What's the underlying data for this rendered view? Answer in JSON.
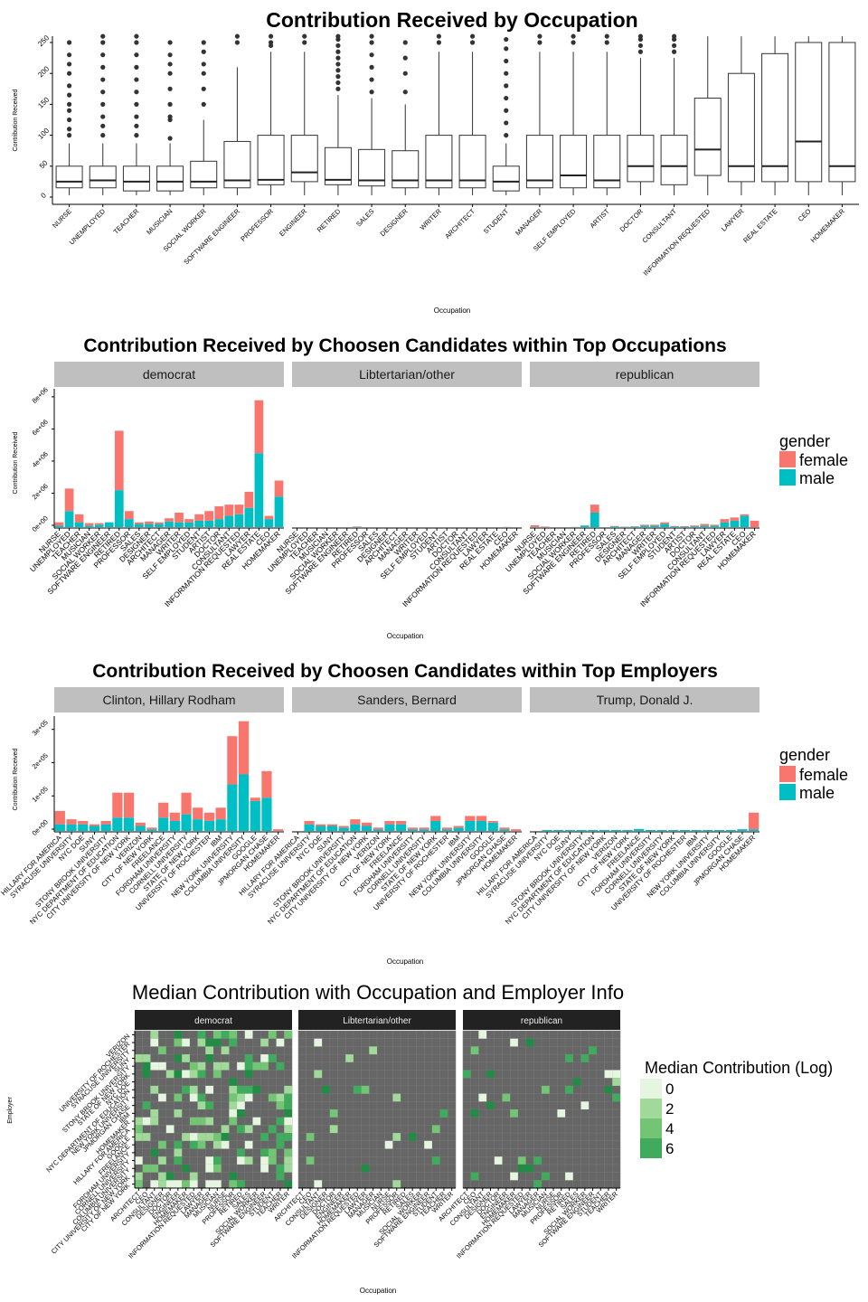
{
  "chart_data": [
    {
      "type": "box",
      "title": "Contribution Received by Occupation",
      "xlabel": "Occupation",
      "ylabel": "Contribution Received",
      "ylim": [
        0,
        260
      ],
      "yticks": [
        0,
        50,
        100,
        150,
        200,
        250
      ],
      "categories": [
        "NURSE",
        "UNEMPLOYED",
        "TEACHER",
        "MUSICIAN",
        "SOCIAL WORKER",
        "SOFTWARE ENGINEER",
        "PROFESSOR",
        "ENGINEER",
        "RETIRED",
        "SALES",
        "DESIGNER",
        "WRITER",
        "ARCHITECT",
        "STUDENT",
        "MANAGER",
        "SELF EMPLOYED",
        "ARTIST",
        "DOCTOR",
        "CONSULTANT",
        "INFORMATION REQUESTED",
        "LAWYER",
        "REAL ESTATE",
        "CEO",
        "HOMEMAKER"
      ],
      "boxes": [
        {
          "min": 3,
          "q1": 15,
          "median": 25,
          "q3": 50,
          "max": 87,
          "outliers": [
            100,
            110,
            125,
            140,
            150,
            165,
            180,
            200,
            215,
            230,
            250
          ]
        },
        {
          "min": 3,
          "q1": 15,
          "median": 27,
          "q3": 50,
          "max": 87,
          "outliers": [
            100,
            115,
            130,
            150,
            170,
            190,
            210,
            230,
            250,
            260
          ]
        },
        {
          "min": 3,
          "q1": 10,
          "median": 25,
          "q3": 50,
          "max": 87,
          "outliers": [
            100,
            115,
            130,
            150,
            170,
            190,
            210,
            230,
            250,
            260
          ]
        },
        {
          "min": 3,
          "q1": 10,
          "median": 25,
          "q3": 50,
          "max": 87,
          "outliers": [
            95,
            125,
            130,
            150,
            175,
            200,
            215,
            230,
            250
          ]
        },
        {
          "min": 3,
          "q1": 15,
          "median": 25,
          "q3": 58,
          "max": 125,
          "outliers": [
            150,
            175,
            200,
            215,
            235,
            250
          ]
        },
        {
          "min": 3,
          "q1": 15,
          "median": 27,
          "q3": 90,
          "max": 210,
          "outliers": [
            250,
            260
          ]
        },
        {
          "min": 3,
          "q1": 20,
          "median": 28,
          "q3": 100,
          "max": 235,
          "outliers": [
            245,
            250,
            260
          ]
        },
        {
          "min": 3,
          "q1": 25,
          "median": 40,
          "q3": 100,
          "max": 235,
          "outliers": [
            250,
            260
          ]
        },
        {
          "min": 3,
          "q1": 20,
          "median": 28,
          "q3": 80,
          "max": 165,
          "outliers": [
            175,
            185,
            195,
            205,
            215,
            225,
            235,
            245,
            255,
            260
          ]
        },
        {
          "min": 3,
          "q1": 18,
          "median": 27,
          "q3": 77,
          "max": 160,
          "outliers": [
            170,
            190,
            210,
            230,
            250,
            260
          ]
        },
        {
          "min": 3,
          "q1": 15,
          "median": 27,
          "q3": 75,
          "max": 150,
          "outliers": [
            170,
            200,
            225,
            250
          ]
        },
        {
          "min": 3,
          "q1": 15,
          "median": 27,
          "q3": 100,
          "max": 235,
          "outliers": [
            250,
            260
          ]
        },
        {
          "min": 3,
          "q1": 15,
          "median": 27,
          "q3": 100,
          "max": 235,
          "outliers": [
            250,
            260
          ]
        },
        {
          "min": 3,
          "q1": 10,
          "median": 25,
          "q3": 50,
          "max": 87,
          "outliers": [
            100,
            120,
            140,
            160,
            180,
            200,
            220,
            240,
            255
          ]
        },
        {
          "min": 3,
          "q1": 15,
          "median": 27,
          "q3": 100,
          "max": 235,
          "outliers": [
            250,
            260
          ]
        },
        {
          "min": 3,
          "q1": 15,
          "median": 35,
          "q3": 100,
          "max": 235,
          "outliers": [
            250,
            260
          ]
        },
        {
          "min": 3,
          "q1": 15,
          "median": 27,
          "q3": 100,
          "max": 235,
          "outliers": [
            250,
            260
          ]
        },
        {
          "min": 3,
          "q1": 25,
          "median": 50,
          "q3": 100,
          "max": 225,
          "outliers": [
            235,
            245,
            255,
            260
          ]
        },
        {
          "min": 3,
          "q1": 20,
          "median": 50,
          "q3": 100,
          "max": 225,
          "outliers": [
            235,
            245,
            255,
            260
          ]
        },
        {
          "min": 3,
          "q1": 35,
          "median": 77,
          "q3": 160,
          "max": 260,
          "outliers": []
        },
        {
          "min": 3,
          "q1": 25,
          "median": 50,
          "q3": 200,
          "max": 260,
          "outliers": []
        },
        {
          "min": 3,
          "q1": 25,
          "median": 50,
          "q3": 232,
          "max": 260,
          "outliers": []
        },
        {
          "min": 3,
          "q1": 25,
          "median": 90,
          "q3": 250,
          "max": 260,
          "outliers": []
        },
        {
          "min": 3,
          "q1": 25,
          "median": 50,
          "q3": 250,
          "max": 260,
          "outliers": []
        }
      ]
    },
    {
      "type": "bar",
      "stacked": true,
      "title": "Contribution Received by Choosen Candidates within Top Occupations",
      "xlabel": "Occupation",
      "ylabel": "Contribution Received",
      "ylim": [
        0,
        8500000
      ],
      "yticks": [
        0,
        2000000,
        4000000,
        6000000,
        8000000
      ],
      "ytick_labels": [
        "0e+00",
        "2e+06",
        "4e+06",
        "6e+06",
        "8e+06"
      ],
      "legend": {
        "title": "gender",
        "position": "right",
        "entries": [
          "female",
          "male"
        ]
      },
      "categories": [
        "NURSE",
        "UNEMPLOYED",
        "TEACHER",
        "MUSICIAN",
        "SOCIAL WORKER",
        "SOFTWARE ENGINEER",
        "RETIRED",
        "PROFESSOR",
        "SALES",
        "DESIGNER",
        "ARCHITECT",
        "MANAGER",
        "WRITER",
        "SELF EMPLOYED",
        "STUDENT",
        "ARTIST",
        "DOCTOR",
        "CONSULTANT",
        "INFORMATION REQUESTED",
        "LAWYER",
        "REAL ESTATE",
        "CEO",
        "HOMEMAKER"
      ],
      "facets": [
        {
          "name": "democrat",
          "series": [
            {
              "name": "male",
              "values": [
                100000,
                1000000,
                300000,
                100000,
                150000,
                300000,
                2300000,
                500000,
                200000,
                200000,
                200000,
                350000,
                300000,
                300000,
                400000,
                400000,
                500000,
                700000,
                800000,
                1200000,
                4600000,
                500000,
                1900000
              ]
            },
            {
              "name": "female",
              "values": [
                200000,
                1400000,
                500000,
                150000,
                100000,
                0,
                3700000,
                500000,
                100000,
                150000,
                100000,
                200000,
                600000,
                200000,
                400000,
                600000,
                800000,
                700000,
                600000,
                1000000,
                3300000,
                200000,
                1000000
              ]
            }
          ]
        },
        {
          "name": "Libtertarian/other",
          "series": [
            {
              "name": "male",
              "values": [
                0,
                0,
                0,
                0,
                0,
                0,
                20000,
                0,
                0,
                0,
                0,
                0,
                0,
                0,
                0,
                0,
                0,
                0,
                0,
                0,
                0,
                10000,
                0
              ]
            },
            {
              "name": "female",
              "values": [
                0,
                0,
                0,
                0,
                0,
                0,
                20000,
                0,
                0,
                0,
                0,
                0,
                0,
                0,
                0,
                0,
                0,
                0,
                0,
                0,
                0,
                0,
                0
              ]
            }
          ]
        },
        {
          "name": "republican",
          "series": [
            {
              "name": "male",
              "values": [
                20000,
                10000,
                0,
                0,
                10000,
                100000,
                900000,
                0,
                50000,
                20000,
                40000,
                100000,
                100000,
                200000,
                50000,
                30000,
                50000,
                100000,
                100000,
                300000,
                400000,
                700000,
                0
              ]
            },
            {
              "name": "female",
              "values": [
                100000,
                30000,
                0,
                0,
                0,
                0,
                500000,
                0,
                20000,
                10000,
                10000,
                50000,
                50000,
                100000,
                20000,
                30000,
                50000,
                100000,
                50000,
                200000,
                200000,
                100000,
                400000
              ]
            }
          ]
        }
      ]
    },
    {
      "type": "bar",
      "stacked": true,
      "title": "Contribution Received by Choosen Candidates within Top Employers",
      "xlabel": "Occupation",
      "ylabel": "Contribution Received",
      "ylim": [
        0,
        340000
      ],
      "yticks": [
        0,
        100000,
        200000,
        300000
      ],
      "ytick_labels": [
        "0e+00",
        "1e+05",
        "2e+05",
        "3e+05"
      ],
      "legend": {
        "title": "gender",
        "position": "right",
        "entries": [
          "female",
          "male"
        ]
      },
      "categories": [
        "HILLARY FOR AMERICA",
        "SYRACUSE UNIVERSITY",
        "NYC DOE",
        "SUNY",
        "STONY BROOK UNIVERSITY",
        "NYC DEPARTMENT OF EDUCATION",
        "CITY UNIVERSITY OF NEW YORK",
        "VERIZON",
        "CITY OF NEW YORK",
        "FREELANCE",
        "FORDHAM UNIVERSITY",
        "CORNELL UNIVERSITY",
        "STATE OF NEW YORK",
        "UNIVERSITY OF ROCHESTER",
        "IBM",
        "NEW YORK UNIVERSITY",
        "COLUMBIA UNIVERSITY",
        "GOOGLE",
        "JPMORGAN CHASE",
        "HOMEMAKER"
      ],
      "facets": [
        {
          "name": "Clinton, Hillary Rodham",
          "series": [
            {
              "name": "male",
              "values": [
                20000,
                20000,
                20000,
                15000,
                20000,
                40000,
                40000,
                15000,
                5000,
                40000,
                30000,
                50000,
                35000,
                30000,
                35000,
                140000,
                170000,
                90000,
                100000,
                0
              ]
            },
            {
              "name": "female",
              "values": [
                40000,
                15000,
                10000,
                5000,
                10000,
                75000,
                75000,
                10000,
                5000,
                45000,
                25000,
                65000,
                35000,
                25000,
                35000,
                145000,
                160000,
                10000,
                80000,
                5000
              ]
            }
          ]
        },
        {
          "name": "Sanders, Bernard",
          "series": [
            {
              "name": "male",
              "values": [
                0,
                20000,
                15000,
                15000,
                10000,
                20000,
                15000,
                5000,
                20000,
                20000,
                5000,
                5000,
                30000,
                5000,
                10000,
                30000,
                30000,
                25000,
                5000,
                0
              ]
            },
            {
              "name": "female",
              "values": [
                0,
                10000,
                5000,
                5000,
                5000,
                15000,
                10000,
                5000,
                10000,
                10000,
                5000,
                5000,
                15000,
                5000,
                5000,
                15000,
                15000,
                5000,
                5000,
                5000
              ]
            }
          ]
        },
        {
          "name": "Trump, Donald J.",
          "series": [
            {
              "name": "male",
              "values": [
                0,
                3000,
                3000,
                3000,
                3000,
                3000,
                3000,
                3000,
                3000,
                6000,
                3000,
                3000,
                3000,
                3000,
                3000,
                3000,
                3000,
                3000,
                5000,
                5000
              ]
            },
            {
              "name": "female",
              "values": [
                0,
                0,
                0,
                0,
                0,
                0,
                0,
                0,
                0,
                0,
                0,
                0,
                0,
                0,
                0,
                0,
                0,
                0,
                0,
                50000
              ]
            }
          ]
        }
      ]
    },
    {
      "type": "heatmap",
      "title": "Median Contribution with Occupation and Employer Info",
      "xlabel": "Occupation",
      "ylabel": "Employer",
      "legend": {
        "title": "Median Contribution (Log)",
        "position": "right",
        "entries": [
          "0",
          "2",
          "4",
          "6"
        ]
      },
      "x_tick_labels": [
        "ARCHITECT",
        "CEO",
        "CONSULTANT",
        "DESIGNER",
        "DOCTOR",
        "ENGINEER",
        "HOMEMAKER",
        "INFORMATION REQUESTED",
        "LAWYER",
        "MANAGER",
        "MUSICIAN",
        "NURSE",
        "PROFESSOR",
        "RETIRED",
        "SALES",
        "SOCIAL WORKER",
        "SOFTWARE ENGINEER",
        "STUDENT",
        "TEACHER",
        "WRITER"
      ],
      "y_tick_labels": [
        "CITY OF NEW YORK",
        "CITY UNIVERSITY OF NEW YORK",
        "COLUMBIA UNIVERSITY",
        "CORNELL UNIVERSITY",
        "FORDHAM UNIVERSITY",
        "FREELANCE",
        "GOOGLE",
        "HILLARY FOR AMERICA",
        "HOMEMAKER",
        "IBM",
        "JPMORGAN CHASE",
        "NEW YORK UNIVERSITY",
        "NYC DEPARTMENT OF EDUCATION",
        "NYC DOE",
        "STATE OF NEW YORK",
        "STONY BROOK UNIVERSITY",
        "SUNY",
        "SYRACUSE UNIVERSITY",
        "UNIVERSITY OF ROCHESTER",
        "VERIZON"
      ],
      "facets": [
        "democrat",
        "Libtertarian/other",
        "republican"
      ]
    }
  ],
  "colors": {
    "female": "#F8766D",
    "male": "#00BFC4",
    "strip": "#bfbfbf",
    "dark_strip": "#222222",
    "heat_bg": "#666666",
    "heat_scale": [
      "#e5f5e0",
      "#a1d99b",
      "#74c476",
      "#41ab5d",
      "#238b45",
      "#006d2c"
    ]
  }
}
